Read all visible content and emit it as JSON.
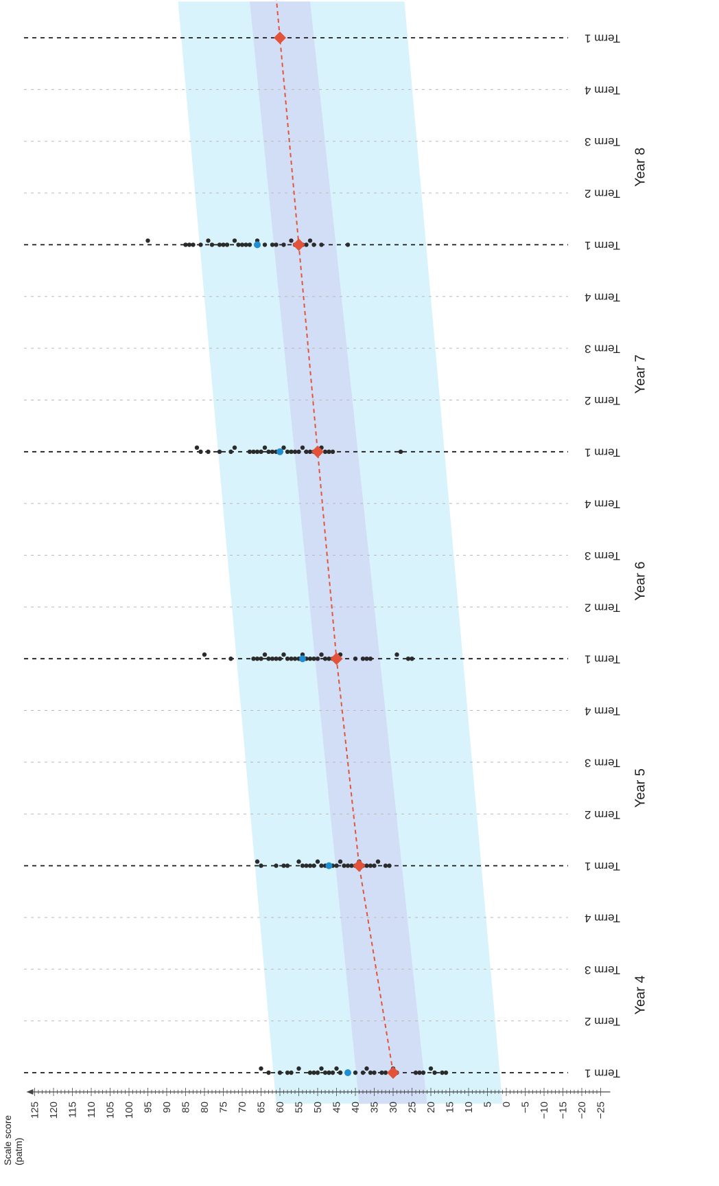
{
  "chart_data": {
    "type": "scatter",
    "title": "",
    "ylabel": "Scale score (patm)",
    "ylim": [
      -25,
      125
    ],
    "y_ticks": [
      125,
      120,
      115,
      110,
      105,
      100,
      95,
      90,
      85,
      80,
      75,
      70,
      65,
      60,
      55,
      50,
      45,
      40,
      35,
      30,
      25,
      20,
      15,
      10,
      5,
      0,
      -5,
      -10,
      -15,
      -20,
      -25
    ],
    "orientation": "rotated 90° clockwise (score axis runs along bottom, time axis runs up the page)",
    "timeline": [
      {
        "year": "Year 4",
        "term": "Term 1",
        "test": true
      },
      {
        "year": "Year 4",
        "term": "Term 2",
        "test": false
      },
      {
        "year": "Year 4",
        "term": "Term 3",
        "test": false
      },
      {
        "year": "Year 4",
        "term": "Term 4",
        "test": false
      },
      {
        "year": "Year 5",
        "term": "Term 1",
        "test": true
      },
      {
        "year": "Year 5",
        "term": "Term 2",
        "test": false
      },
      {
        "year": "Year 5",
        "term": "Term 3",
        "test": false
      },
      {
        "year": "Year 5",
        "term": "Term 4",
        "test": false
      },
      {
        "year": "Year 6",
        "term": "Term 1",
        "test": true
      },
      {
        "year": "Year 6",
        "term": "Term 2",
        "test": false
      },
      {
        "year": "Year 6",
        "term": "Term 3",
        "test": false
      },
      {
        "year": "Year 6",
        "term": "Term 4",
        "test": false
      },
      {
        "year": "Year 7",
        "term": "Term 1",
        "test": true
      },
      {
        "year": "Year 7",
        "term": "Term 2",
        "test": false
      },
      {
        "year": "Year 7",
        "term": "Term 3",
        "test": false
      },
      {
        "year": "Year 7",
        "term": "Term 4",
        "test": false
      },
      {
        "year": "Year 8",
        "term": "Term 1",
        "test": true
      },
      {
        "year": "Year 8",
        "term": "Term 2",
        "test": false
      },
      {
        "year": "Year 8",
        "term": "Term 3",
        "test": false
      },
      {
        "year": "Year 8",
        "term": "Term 4",
        "test": false
      },
      {
        "year": "",
        "term": "Term 1",
        "test": true
      }
    ],
    "years": [
      "Year 4",
      "Year 5",
      "Year 6",
      "Year 7",
      "Year 8"
    ],
    "norm_mean": [
      {
        "t": 0,
        "score": 30
      },
      {
        "t": 4,
        "score": 39
      },
      {
        "t": 8,
        "score": 45
      },
      {
        "t": 12,
        "score": 50
      },
      {
        "t": 16,
        "score": 55
      },
      {
        "t": 20,
        "score": 60
      }
    ],
    "inner_band": [
      {
        "t": -0.6,
        "low": 21,
        "high": 39
      },
      {
        "t": 20.7,
        "low": 52,
        "high": 68
      }
    ],
    "outer_band": [
      {
        "t": -0.6,
        "low": 1,
        "high": 61
      },
      {
        "t": 20.7,
        "low": 27,
        "high": 87
      }
    ],
    "highlight_student": [
      {
        "t": 0,
        "score": 42
      },
      {
        "t": 4,
        "score": 47
      },
      {
        "t": 8,
        "score": 54
      },
      {
        "t": 12,
        "score": 60
      },
      {
        "t": 16,
        "score": 66
      }
    ],
    "cohort_scores": [
      {
        "t": 0,
        "scores": [
          65,
          63,
          60,
          58,
          57,
          55,
          52,
          51,
          50,
          50,
          49,
          48,
          47,
          47,
          46,
          45,
          44,
          44,
          40,
          38,
          37,
          36,
          35,
          33,
          32,
          30,
          29,
          24,
          23,
          22,
          20,
          19,
          17,
          16
        ]
      },
      {
        "t": 4,
        "scores": [
          66,
          65,
          61,
          59,
          58,
          55,
          54,
          53,
          52,
          51,
          50,
          49,
          48,
          46,
          45,
          44,
          43,
          42,
          41,
          40,
          39,
          38,
          37,
          36,
          35,
          34,
          32,
          31
        ]
      },
      {
        "t": 8,
        "scores": [
          80,
          73,
          67,
          66,
          65,
          64,
          63,
          62,
          61,
          60,
          59,
          58,
          57,
          56,
          55,
          54,
          53,
          52,
          51,
          50,
          49,
          48,
          47,
          46,
          45,
          44,
          40,
          38,
          37,
          36,
          29,
          26,
          25
        ]
      },
      {
        "t": 12,
        "scores": [
          82,
          81,
          79,
          76,
          73,
          72,
          68,
          67,
          66,
          65,
          64,
          63,
          62,
          61,
          60,
          59,
          58,
          57,
          56,
          55,
          54,
          53,
          52,
          51,
          50,
          49,
          48,
          47,
          46,
          28
        ]
      },
      {
        "t": 16,
        "scores": [
          95,
          85,
          84,
          83,
          81,
          79,
          78,
          76,
          75,
          74,
          72,
          71,
          70,
          69,
          68,
          66,
          64,
          62,
          61,
          59,
          57,
          56,
          55,
          54,
          53,
          52,
          51,
          49,
          42
        ]
      }
    ],
    "grid": true
  }
}
